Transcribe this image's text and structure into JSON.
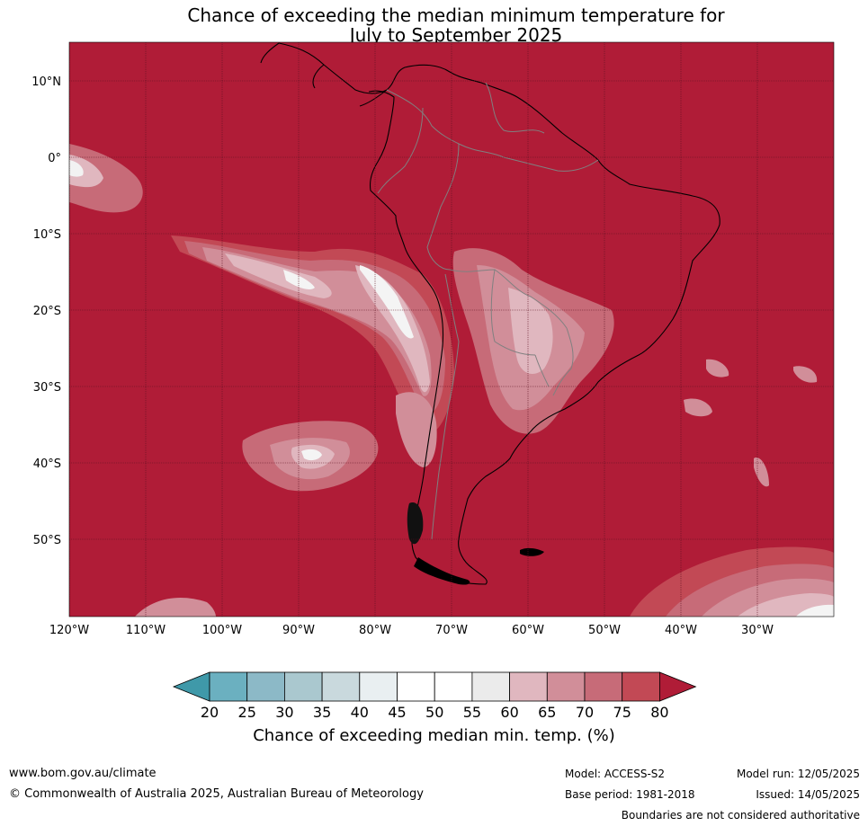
{
  "title": {
    "line1": "Chance of exceeding the median minimum temperature for",
    "line2": "July to September 2025"
  },
  "map": {
    "latitude_labels": [
      "10°N",
      "0°",
      "10°S",
      "20°S",
      "30°S",
      "40°S",
      "50°S"
    ],
    "longitude_labels": [
      "120°W",
      "110°W",
      "100°W",
      "90°W",
      "80°W",
      "70°W",
      "60°W",
      "50°W",
      "40°W",
      "30°W"
    ],
    "background_color": "#b01c37",
    "grid_color": "#5a1020",
    "coastline_color": "#000000",
    "border_color": "#808080"
  },
  "colorbar": {
    "ticks": [
      "20",
      "25",
      "30",
      "35",
      "40",
      "45",
      "50",
      "55",
      "60",
      "65",
      "70",
      "75",
      "80"
    ],
    "colors": [
      "#3f99a9",
      "#6bb0c0",
      "#8cb9c7",
      "#aac8cf",
      "#c9d9dd",
      "#e9eff1",
      "#ffffff",
      "#ffffff",
      "#ebebeb",
      "#e0b7bf",
      "#d18e99",
      "#c76b78",
      "#c24955",
      "#b01c37"
    ],
    "label": "Chance of exceeding median min. temp. (%)"
  },
  "footer": {
    "website": "www.bom.gov.au/climate",
    "copyright": "© Commonwealth of Australia 2025, Australian Bureau of Meteorology",
    "model": "Model: ACCESS-S2",
    "base_period": "Base period: 1981-2018",
    "model_run": "Model run: 12/05/2025",
    "issued": "Issued: 14/05/2025",
    "disclaimer": "Boundaries are not considered authoritative"
  }
}
